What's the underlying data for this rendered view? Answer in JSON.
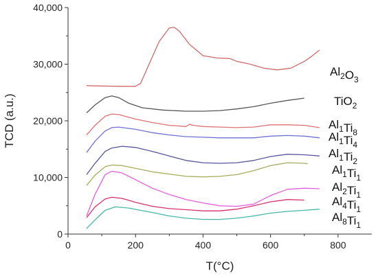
{
  "chart_data": {
    "type": "line",
    "title": "",
    "xlabel": "T(°C)",
    "ylabel": "TCD (a.u.)",
    "xlim": [
      0,
      900
    ],
    "ylim": [
      0,
      40000
    ],
    "x_ticks": [
      0,
      200,
      400,
      600,
      800
    ],
    "x_tick_labels": [
      "0",
      "200",
      "400",
      "600",
      "800"
    ],
    "y_ticks": [
      0,
      10000,
      20000,
      30000,
      40000
    ],
    "y_tick_labels": [
      "0",
      "10,000",
      "20,000",
      "30,000",
      "40,000"
    ],
    "grid": false,
    "legend": "none",
    "series": [
      {
        "name": "Al2O3",
        "label_main": [
          "Al",
          "O"
        ],
        "label_sub": [
          "2",
          "3"
        ],
        "color": "#d06a6a",
        "points": [
          [
            55,
            26200
          ],
          [
            100,
            26150
          ],
          [
            150,
            26100
          ],
          [
            200,
            26100
          ],
          [
            215,
            26600
          ],
          [
            240,
            30000
          ],
          [
            270,
            34000
          ],
          [
            300,
            36400
          ],
          [
            315,
            36500
          ],
          [
            330,
            35800
          ],
          [
            360,
            33500
          ],
          [
            400,
            31500
          ],
          [
            440,
            31100
          ],
          [
            480,
            31000
          ],
          [
            500,
            30500
          ],
          [
            540,
            30000
          ],
          [
            580,
            29300
          ],
          [
            620,
            29000
          ],
          [
            660,
            29300
          ],
          [
            700,
            30500
          ],
          [
            720,
            31300
          ],
          [
            745,
            32500
          ]
        ]
      },
      {
        "name": "TiO2",
        "label_main": [
          "TiO"
        ],
        "label_sub": [
          "2"
        ],
        "color": "#555555",
        "points": [
          [
            55,
            21400
          ],
          [
            80,
            22800
          ],
          [
            110,
            24100
          ],
          [
            130,
            24400
          ],
          [
            150,
            24100
          ],
          [
            180,
            23100
          ],
          [
            220,
            22300
          ],
          [
            280,
            21900
          ],
          [
            350,
            21700
          ],
          [
            400,
            21700
          ],
          [
            450,
            21800
          ],
          [
            500,
            22100
          ],
          [
            550,
            22500
          ],
          [
            600,
            23100
          ],
          [
            650,
            23600
          ],
          [
            700,
            24000
          ]
        ]
      },
      {
        "name": "Al1Ti8",
        "label_main": [
          "Al",
          "Ti"
        ],
        "label_sub": [
          "1",
          "8"
        ],
        "color": "#e07070",
        "points": [
          [
            55,
            17500
          ],
          [
            80,
            19200
          ],
          [
            110,
            20800
          ],
          [
            130,
            21200
          ],
          [
            150,
            21100
          ],
          [
            200,
            20300
          ],
          [
            250,
            19700
          ],
          [
            300,
            19200
          ],
          [
            350,
            19000
          ],
          [
            360,
            19400
          ],
          [
            370,
            19200
          ],
          [
            400,
            19000
          ],
          [
            450,
            18900
          ],
          [
            500,
            18800
          ],
          [
            550,
            18900
          ],
          [
            600,
            19300
          ],
          [
            650,
            19300
          ],
          [
            700,
            19200
          ],
          [
            745,
            18800
          ]
        ]
      },
      {
        "name": "Al1Ti4",
        "label_main": [
          "Al",
          "Ti"
        ],
        "label_sub": [
          "1",
          "4"
        ],
        "color": "#6f6fd8",
        "points": [
          [
            55,
            14400
          ],
          [
            80,
            16400
          ],
          [
            110,
            18200
          ],
          [
            130,
            18800
          ],
          [
            150,
            18900
          ],
          [
            200,
            18500
          ],
          [
            250,
            17900
          ],
          [
            300,
            17500
          ],
          [
            350,
            17200
          ],
          [
            400,
            17100
          ],
          [
            450,
            17000
          ],
          [
            500,
            17000
          ],
          [
            550,
            17000
          ],
          [
            600,
            17300
          ],
          [
            650,
            17400
          ],
          [
            700,
            17300
          ],
          [
            745,
            17000
          ]
        ]
      },
      {
        "name": "Al1Ti2",
        "label_main": [
          "Al",
          "Ti"
        ],
        "label_sub": [
          "1",
          "2"
        ],
        "color": "#5555a0",
        "points": [
          [
            55,
            10500
          ],
          [
            80,
            12500
          ],
          [
            110,
            14600
          ],
          [
            130,
            15200
          ],
          [
            160,
            15500
          ],
          [
            200,
            15300
          ],
          [
            250,
            14600
          ],
          [
            300,
            13800
          ],
          [
            350,
            13000
          ],
          [
            400,
            12600
          ],
          [
            450,
            12500
          ],
          [
            500,
            12600
          ],
          [
            550,
            13000
          ],
          [
            600,
            13700
          ],
          [
            650,
            14100
          ],
          [
            700,
            14000
          ],
          [
            745,
            13800
          ]
        ]
      },
      {
        "name": "Al1Ti1",
        "label_main": [
          "Al",
          "Ti"
        ],
        "label_sub": [
          "1",
          "1"
        ],
        "color": "#a6ad5a",
        "points": [
          [
            55,
            8600
          ],
          [
            80,
            10400
          ],
          [
            110,
            11900
          ],
          [
            130,
            12200
          ],
          [
            160,
            12100
          ],
          [
            200,
            11600
          ],
          [
            250,
            11000
          ],
          [
            300,
            10600
          ],
          [
            350,
            10200
          ],
          [
            400,
            10100
          ],
          [
            450,
            10200
          ],
          [
            500,
            10500
          ],
          [
            550,
            11200
          ],
          [
            600,
            12100
          ],
          [
            650,
            12600
          ],
          [
            700,
            12500
          ],
          [
            710,
            12400
          ]
        ]
      },
      {
        "name": "Al2Ti1",
        "label_main": [
          "Al",
          "Ti"
        ],
        "label_sub": [
          "2",
          "1"
        ],
        "color": "#e55ce0",
        "points": [
          [
            55,
            3200
          ],
          [
            80,
            7000
          ],
          [
            110,
            10500
          ],
          [
            130,
            11100
          ],
          [
            160,
            10800
          ],
          [
            200,
            9600
          ],
          [
            250,
            8100
          ],
          [
            300,
            7000
          ],
          [
            350,
            6100
          ],
          [
            400,
            5500
          ],
          [
            450,
            5000
          ],
          [
            500,
            4900
          ],
          [
            550,
            5300
          ],
          [
            600,
            6800
          ],
          [
            650,
            7900
          ],
          [
            700,
            8100
          ],
          [
            745,
            8000
          ]
        ]
      },
      {
        "name": "Al4Ti1",
        "label_main": [
          "Al",
          "Ti"
        ],
        "label_sub": [
          "4",
          "1"
        ],
        "color": "#d6306a",
        "points": [
          [
            55,
            2900
          ],
          [
            80,
            4800
          ],
          [
            110,
            6200
          ],
          [
            130,
            6500
          ],
          [
            160,
            6300
          ],
          [
            200,
            5600
          ],
          [
            250,
            4900
          ],
          [
            300,
            4500
          ],
          [
            350,
            4300
          ],
          [
            400,
            4100
          ],
          [
            450,
            4100
          ],
          [
            500,
            4400
          ],
          [
            550,
            5000
          ],
          [
            600,
            5700
          ],
          [
            650,
            6100
          ],
          [
            700,
            6000
          ]
        ]
      },
      {
        "name": "Al8Ti1",
        "label_main": [
          "Al",
          "Ti"
        ],
        "label_sub": [
          "8",
          "1"
        ],
        "color": "#45b7aa",
        "points": [
          [
            55,
            1000
          ],
          [
            80,
            2500
          ],
          [
            110,
            4200
          ],
          [
            140,
            4800
          ],
          [
            180,
            4600
          ],
          [
            250,
            3800
          ],
          [
            300,
            3200
          ],
          [
            350,
            2800
          ],
          [
            400,
            2600
          ],
          [
            450,
            2600
          ],
          [
            500,
            2800
          ],
          [
            550,
            3200
          ],
          [
            600,
            3700
          ],
          [
            650,
            4000
          ],
          [
            700,
            4200
          ],
          [
            745,
            4400
          ]
        ]
      }
    ]
  }
}
